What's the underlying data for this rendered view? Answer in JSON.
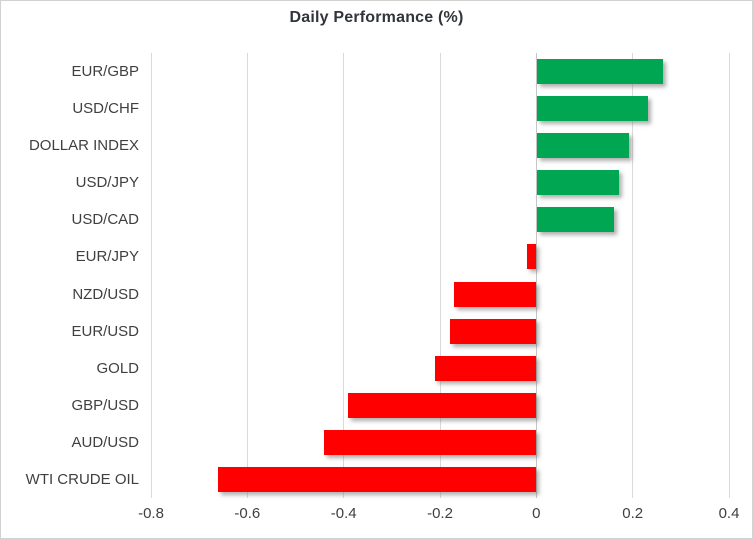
{
  "chart_data": {
    "type": "bar",
    "orientation": "horizontal",
    "title": "Daily Performance (%)",
    "categories": [
      "EUR/GBP",
      "USD/CHF",
      "DOLLAR INDEX",
      "USD/JPY",
      "USD/CAD",
      "EUR/JPY",
      "NZD/USD",
      "EUR/USD",
      "GOLD",
      "GBP/USD",
      "AUD/USD",
      "WTI CRUDE OIL"
    ],
    "values": [
      0.26,
      0.23,
      0.19,
      0.17,
      0.16,
      -0.02,
      -0.17,
      -0.18,
      -0.21,
      -0.39,
      -0.44,
      -0.66
    ],
    "xlim": [
      -0.8,
      0.4
    ],
    "x_ticks": [
      -0.8,
      -0.6,
      -0.4,
      -0.2,
      0,
      0.2,
      0.4
    ],
    "x_tick_labels": [
      "-0.8",
      "-0.6",
      "-0.4",
      "-0.2",
      "0",
      "0.2",
      "0.4"
    ],
    "grid": true,
    "legend": false,
    "colors": {
      "positive_bar": "#00A651",
      "negative_bar": "#FF0000",
      "gridline": "#D9D9D9",
      "zero_axis_line": "#C6C6C6",
      "axis_label": "#404040",
      "title": "#31353B",
      "background": "#FFFFFF",
      "border": "#D2D2D2"
    }
  }
}
